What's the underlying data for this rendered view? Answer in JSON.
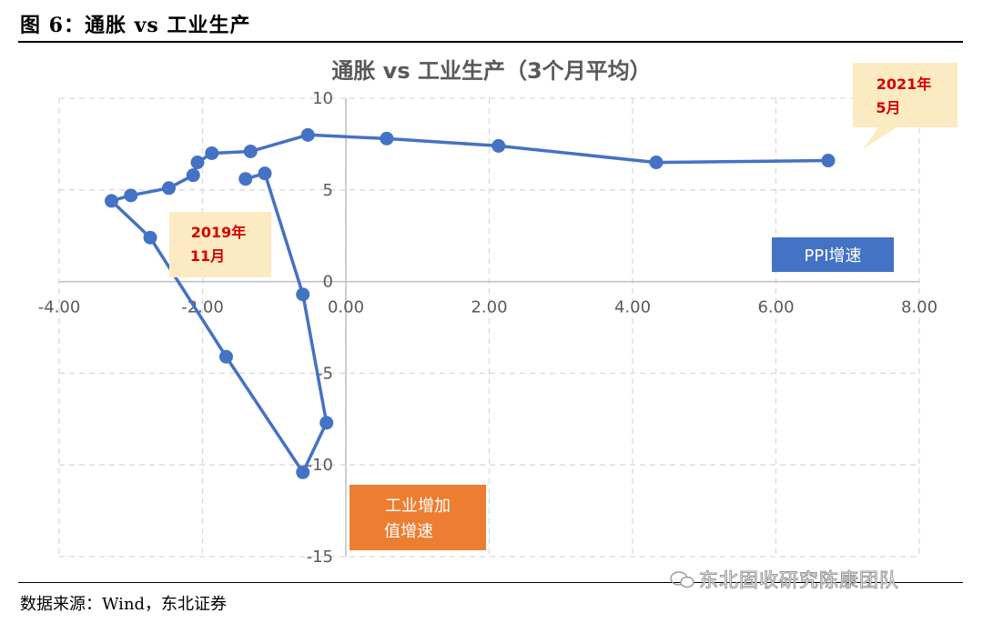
{
  "header": {
    "figure_label": "图 6：通胀 vs 工业生产"
  },
  "footer": {
    "source": "数据来源：Wind，东北证券",
    "watermark": "东北固收研究陈康团队"
  },
  "colors": {
    "series": "#4472C4",
    "legend_bg": "#4472C4",
    "label_bg": "#ED7D31",
    "callout_bg": "#FCEBC2",
    "callout_text": "#D40000"
  },
  "chart_data": {
    "type": "scatter",
    "title": "通胀 vs 工业生产（3个月平均）",
    "xlim": [
      -4,
      8
    ],
    "ylim": [
      -15,
      10
    ],
    "x_ticks": [
      "-4.00",
      "-2.00",
      "0.00",
      "2.00",
      "4.00",
      "6.00",
      "8.00"
    ],
    "y_ticks": [
      "10",
      "5",
      "0",
      "-5",
      "-10",
      "-15"
    ],
    "grid": true,
    "series": [
      {
        "name": "PPI增速",
        "connected": true,
        "points": [
          {
            "x": -1.4,
            "y": 5.6
          },
          {
            "x": -1.13,
            "y": 5.9
          },
          {
            "x": -0.6,
            "y": -0.7
          },
          {
            "x": -0.27,
            "y": -7.7
          },
          {
            "x": -0.6,
            "y": -10.4
          },
          {
            "x": -1.67,
            "y": -4.1
          },
          {
            "x": -2.73,
            "y": 2.4
          },
          {
            "x": -3.27,
            "y": 4.4
          },
          {
            "x": -3.0,
            "y": 4.7
          },
          {
            "x": -2.47,
            "y": 5.1
          },
          {
            "x": -2.13,
            "y": 5.8
          },
          {
            "x": -2.07,
            "y": 6.5
          },
          {
            "x": -1.87,
            "y": 7.0
          },
          {
            "x": -1.33,
            "y": 7.1
          },
          {
            "x": -0.53,
            "y": 8.0
          },
          {
            "x": 0.57,
            "y": 7.8
          },
          {
            "x": 2.13,
            "y": 7.4
          },
          {
            "x": 4.33,
            "y": 6.5
          },
          {
            "x": 6.73,
            "y": 6.6
          }
        ]
      }
    ],
    "legend_labels": {
      "x_series": "PPI增速",
      "y_series": "工业增加值增速"
    },
    "annotations": [
      {
        "text_line1": "2019年",
        "text_line2": "11月"
      },
      {
        "text_line1": "2021年",
        "text_line2": "5月"
      }
    ]
  }
}
